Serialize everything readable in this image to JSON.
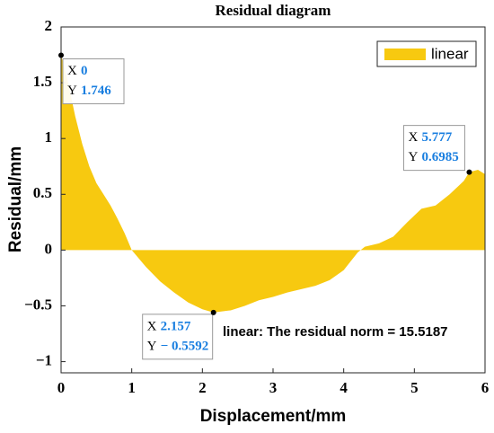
{
  "chart_data": {
    "type": "area",
    "title": "Residual diagram",
    "xlabel": "Displacement/mm",
    "ylabel": "Residual/mm",
    "series": [
      {
        "name": "linear",
        "color": "#f7c910",
        "x": [
          0,
          0.1,
          0.2,
          0.3,
          0.4,
          0.5,
          0.6,
          0.7,
          0.8,
          0.9,
          1.0,
          1.2,
          1.4,
          1.6,
          1.8,
          2.0,
          2.157,
          2.4,
          2.6,
          2.8,
          3.0,
          3.2,
          3.4,
          3.6,
          3.8,
          4.0,
          4.1,
          4.2,
          4.3,
          4.5,
          4.7,
          4.9,
          5.1,
          5.3,
          5.5,
          5.7,
          5.777,
          5.9,
          6.0
        ],
        "values": [
          1.746,
          1.5,
          1.2,
          0.95,
          0.75,
          0.6,
          0.5,
          0.4,
          0.28,
          0.15,
          0.0,
          -0.15,
          -0.28,
          -0.38,
          -0.47,
          -0.53,
          -0.5592,
          -0.54,
          -0.5,
          -0.45,
          -0.42,
          -0.38,
          -0.35,
          -0.32,
          -0.27,
          -0.18,
          -0.1,
          -0.02,
          0.03,
          0.06,
          0.12,
          0.25,
          0.37,
          0.4,
          0.5,
          0.62,
          0.6985,
          0.72,
          0.68
        ]
      }
    ],
    "xlim": [
      0,
      6
    ],
    "ylim": [
      -1.1,
      2
    ],
    "xticks": [
      0,
      1,
      2,
      3,
      4,
      5,
      6
    ],
    "yticks": [
      {
        "value": -1,
        "label": "−1"
      },
      {
        "value": -0.5,
        "label": "−0.5"
      },
      0,
      0.5,
      1,
      1.5,
      2
    ],
    "legend": "upper right",
    "annotation": "linear: The residual norm = 15.5187",
    "datatips": [
      {
        "x_name": "X",
        "y_name": "Y",
        "x": 0,
        "y": 1.746
      },
      {
        "x_name": "X",
        "y_name": "Y",
        "x": 5.777,
        "y": 0.6985
      },
      {
        "x_name": "X",
        "y_name": "Y",
        "x": 2.157,
        "y": {
          "value": -0.5592,
          "label": "− 0.5592"
        }
      }
    ]
  }
}
